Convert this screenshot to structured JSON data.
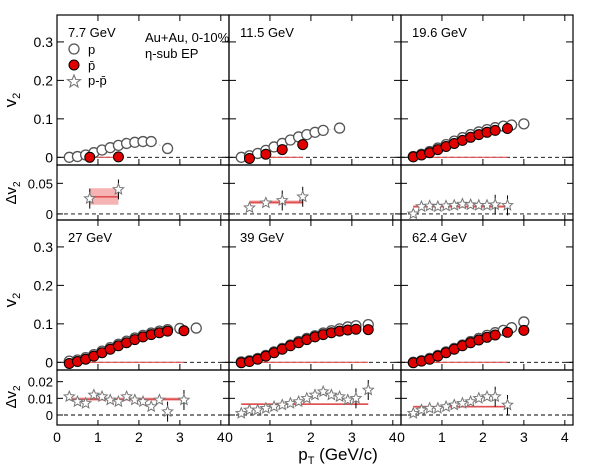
{
  "figure": {
    "xlabel": "p",
    "xlabel_sub": "T",
    "xlabel_unit": " (GeV/c)",
    "ylabel_v2": "v",
    "ylabel_v2_sub": "2",
    "ylabel_dv2": "Δv",
    "ylabel_dv2_sub": "2",
    "legend": {
      "header": [
        "Au+Au,  0-10%",
        "η-sub EP"
      ],
      "p": "p",
      "pbar": "p̄",
      "diff": "p-p̄"
    },
    "colors": {
      "p_edge": "#555555",
      "pbar_fill": "#e00000",
      "diff_edge": "#777777",
      "band": "#e05050"
    }
  },
  "chart_data": [
    {
      "type": "scatter",
      "label": "7.7 GeV",
      "ylim": [
        -0.02,
        0.37
      ],
      "dylim": [
        -0.01,
        0.08
      ],
      "xlim": [
        0,
        4.2
      ],
      "series": [
        {
          "name": "p",
          "x": [
            0.3,
            0.5,
            0.7,
            0.9,
            1.1,
            1.3,
            1.5,
            1.7,
            1.9,
            2.1,
            2.3,
            2.7
          ],
          "y": [
            0.0,
            0.002,
            0.006,
            0.012,
            0.019,
            0.025,
            0.031,
            0.036,
            0.039,
            0.041,
            0.041,
            0.023
          ]
        },
        {
          "name": "p̄",
          "x": [
            0.8,
            1.5
          ],
          "y": [
            0.0,
            0.001
          ]
        },
        {
          "name": "p-p̄",
          "x": [
            0.8,
            1.5
          ],
          "y": [
            0.025,
            0.04
          ]
        }
      ],
      "fit": [
        0.8,
        1.5
      ],
      "fit_value": 0.0,
      "dfit_value": 0.028,
      "dfit_band": [
        0.015,
        0.042
      ]
    },
    {
      "type": "scatter",
      "label": "11.5 GeV",
      "ylim": [
        -0.02,
        0.37
      ],
      "dylim": [
        -0.01,
        0.08
      ],
      "xlim": [
        0,
        4.2
      ],
      "series": [
        {
          "name": "p",
          "x": [
            0.3,
            0.5,
            0.7,
            0.9,
            1.1,
            1.3,
            1.5,
            1.7,
            1.9,
            2.1,
            2.3,
            2.7
          ],
          "y": [
            0.0,
            0.004,
            0.01,
            0.018,
            0.027,
            0.036,
            0.045,
            0.053,
            0.059,
            0.065,
            0.07,
            0.076
          ]
        },
        {
          "name": "p̄",
          "x": [
            0.5,
            0.9,
            1.3,
            1.8
          ],
          "y": [
            -0.003,
            0.008,
            0.02,
            0.033
          ]
        },
        {
          "name": "p-p̄",
          "x": [
            0.5,
            0.9,
            1.3,
            1.8
          ],
          "y": [
            0.01,
            0.018,
            0.022,
            0.028
          ]
        }
      ],
      "fit": [
        0.5,
        1.8
      ],
      "fit_value": 0.0,
      "dfit_value": 0.019,
      "dfit_band": [
        0.016,
        0.022
      ]
    },
    {
      "type": "scatter",
      "label": "19.6 GeV",
      "ylim": [
        -0.02,
        0.37
      ],
      "dylim": [
        -0.01,
        0.08
      ],
      "xlim": [
        0,
        4.2
      ],
      "series": [
        {
          "name": "p",
          "x": [
            0.3,
            0.5,
            0.7,
            0.9,
            1.1,
            1.3,
            1.5,
            1.7,
            1.9,
            2.1,
            2.3,
            2.5,
            2.7,
            3.0
          ],
          "y": [
            0.002,
            0.008,
            0.015,
            0.024,
            0.033,
            0.042,
            0.051,
            0.059,
            0.066,
            0.072,
            0.077,
            0.081,
            0.084,
            0.087
          ]
        },
        {
          "name": "p̄",
          "x": [
            0.3,
            0.5,
            0.7,
            0.9,
            1.1,
            1.3,
            1.5,
            1.7,
            1.9,
            2.1,
            2.3,
            2.6
          ],
          "y": [
            0.001,
            0.006,
            0.012,
            0.02,
            0.028,
            0.036,
            0.044,
            0.052,
            0.059,
            0.065,
            0.07,
            0.075
          ]
        },
        {
          "name": "p-p̄",
          "x": [
            0.3,
            0.5,
            0.7,
            0.9,
            1.1,
            1.3,
            1.5,
            1.7,
            1.9,
            2.1,
            2.3,
            2.6
          ],
          "y": [
            0.0,
            0.012,
            0.013,
            0.012,
            0.013,
            0.014,
            0.016,
            0.015,
            0.014,
            0.014,
            0.015,
            0.014
          ]
        }
      ],
      "fit": [
        0.3,
        2.6
      ],
      "fit_value": 0.0,
      "dfit_value": 0.012,
      "dfit_band": [
        0.01,
        0.014
      ]
    },
    {
      "type": "scatter",
      "label": "27 GeV",
      "ylim": [
        -0.02,
        0.37
      ],
      "dylim": [
        -0.006,
        0.027
      ],
      "xlim": [
        0,
        4.2
      ],
      "series": [
        {
          "name": "p",
          "x": [
            0.3,
            0.5,
            0.7,
            0.9,
            1.1,
            1.3,
            1.5,
            1.7,
            1.9,
            2.1,
            2.3,
            2.5,
            2.7,
            3.0,
            3.4
          ],
          "y": [
            0.003,
            0.006,
            0.012,
            0.02,
            0.029,
            0.038,
            0.047,
            0.055,
            0.063,
            0.07,
            0.076,
            0.081,
            0.085,
            0.088,
            0.089
          ]
        },
        {
          "name": "p̄",
          "x": [
            0.3,
            0.5,
            0.7,
            0.9,
            1.1,
            1.3,
            1.5,
            1.7,
            1.9,
            2.1,
            2.3,
            2.5,
            2.7,
            3.1
          ],
          "y": [
            -0.003,
            0.002,
            0.008,
            0.016,
            0.025,
            0.034,
            0.043,
            0.051,
            0.059,
            0.066,
            0.072,
            0.077,
            0.081,
            0.082
          ]
        },
        {
          "name": "p-p̄",
          "x": [
            0.3,
            0.5,
            0.7,
            0.9,
            1.1,
            1.3,
            1.5,
            1.7,
            1.9,
            2.1,
            2.3,
            2.5,
            2.7,
            3.1
          ],
          "y": [
            0.011,
            0.008,
            0.007,
            0.012,
            0.011,
            0.009,
            0.008,
            0.011,
            0.009,
            0.008,
            0.005,
            0.009,
            0.002,
            0.009
          ]
        }
      ],
      "fit": [
        0.3,
        3.1
      ],
      "fit_value": 0.0,
      "dfit_value": 0.0095,
      "dfit_band": [
        0.0085,
        0.0105
      ]
    },
    {
      "type": "scatter",
      "label": "39 GeV",
      "ylim": [
        -0.02,
        0.37
      ],
      "dylim": [
        -0.006,
        0.027
      ],
      "xlim": [
        0,
        4.2
      ],
      "series": [
        {
          "name": "p",
          "x": [
            0.3,
            0.5,
            0.7,
            0.9,
            1.1,
            1.3,
            1.5,
            1.7,
            1.9,
            2.1,
            2.3,
            2.5,
            2.7,
            2.9,
            3.1,
            3.4
          ],
          "y": [
            0.001,
            0.004,
            0.01,
            0.018,
            0.027,
            0.036,
            0.045,
            0.054,
            0.062,
            0.069,
            0.076,
            0.082,
            0.087,
            0.092,
            0.095,
            0.098
          ]
        },
        {
          "name": "p̄",
          "x": [
            0.3,
            0.5,
            0.7,
            0.9,
            1.1,
            1.3,
            1.5,
            1.7,
            1.9,
            2.1,
            2.3,
            2.5,
            2.7,
            2.9,
            3.1,
            3.4
          ],
          "y": [
            -0.001,
            0.002,
            0.008,
            0.016,
            0.025,
            0.034,
            0.043,
            0.051,
            0.059,
            0.066,
            0.072,
            0.077,
            0.081,
            0.084,
            0.086,
            0.085
          ]
        },
        {
          "name": "p-p̄",
          "x": [
            0.3,
            0.5,
            0.7,
            0.9,
            1.1,
            1.3,
            1.5,
            1.7,
            1.9,
            2.1,
            2.3,
            2.5,
            2.7,
            2.9,
            3.1,
            3.4
          ],
          "y": [
            0.001,
            0.003,
            0.003,
            0.004,
            0.005,
            0.006,
            0.007,
            0.008,
            0.01,
            0.012,
            0.014,
            0.012,
            0.011,
            0.009,
            0.01,
            0.015
          ]
        }
      ],
      "fit": [
        0.3,
        3.4
      ],
      "fit_value": 0.0,
      "dfit_value": 0.0065,
      "dfit_band": [
        0.006,
        0.007
      ]
    },
    {
      "type": "scatter",
      "label": "62.4 GeV",
      "ylim": [
        -0.02,
        0.37
      ],
      "dylim": [
        -0.006,
        0.027
      ],
      "xlim": [
        0,
        4.2
      ],
      "series": [
        {
          "name": "p",
          "x": [
            0.3,
            0.5,
            0.7,
            0.9,
            1.1,
            1.3,
            1.5,
            1.7,
            1.9,
            2.1,
            2.3,
            2.5,
            2.7,
            3.0
          ],
          "y": [
            0.0,
            0.004,
            0.01,
            0.018,
            0.027,
            0.036,
            0.045,
            0.054,
            0.062,
            0.07,
            0.077,
            0.083,
            0.09,
            0.105
          ]
        },
        {
          "name": "p̄",
          "x": [
            0.3,
            0.5,
            0.7,
            0.9,
            1.1,
            1.3,
            1.5,
            1.7,
            1.9,
            2.1,
            2.3,
            2.6,
            3.0
          ],
          "y": [
            -0.001,
            0.003,
            0.008,
            0.016,
            0.025,
            0.034,
            0.043,
            0.051,
            0.058,
            0.065,
            0.071,
            0.078,
            0.083
          ]
        },
        {
          "name": "p-p̄",
          "x": [
            0.3,
            0.5,
            0.7,
            0.9,
            1.1,
            1.3,
            1.5,
            1.7,
            1.9,
            2.1,
            2.3,
            2.6
          ],
          "y": [
            0.001,
            0.003,
            0.004,
            0.004,
            0.005,
            0.006,
            0.007,
            0.008,
            0.01,
            0.011,
            0.011,
            0.006
          ]
        }
      ],
      "fit": [
        0.3,
        2.6
      ],
      "fit_value": 0.0,
      "dfit_value": 0.005,
      "dfit_band": [
        0.0045,
        0.0055
      ]
    }
  ],
  "axes": {
    "v2_ticks": [
      0,
      0.1,
      0.2,
      0.3
    ],
    "v2_tick_labels": [
      "0",
      "0.1",
      "0.2",
      "0.3"
    ],
    "dv2_ticks_top": [
      0,
      0.05
    ],
    "dv2_tick_labels_top": [
      "0",
      "0.05"
    ],
    "dv2_ticks_bottom": [
      0,
      0.01,
      0.02
    ],
    "dv2_tick_labels_bottom": [
      "0",
      "0.01",
      "0.02"
    ],
    "x_ticks": [
      0,
      1,
      2,
      3,
      4
    ],
    "x_tick_labels": [
      "0",
      "1",
      "2",
      "3",
      "4"
    ]
  }
}
